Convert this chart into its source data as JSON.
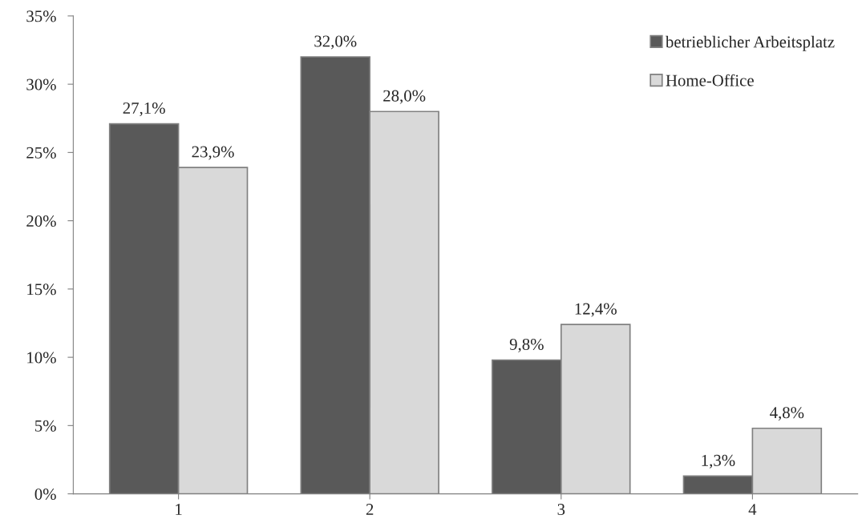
{
  "chart_data": {
    "type": "bar",
    "categories": [
      "1",
      "2",
      "3",
      "4"
    ],
    "series": [
      {
        "name": "betrieblicher Arbeitsplatz",
        "color": "#595959",
        "values": [
          27.1,
          32.0,
          9.8,
          1.3
        ],
        "value_labels": [
          "27,1%",
          "32,0%",
          "9,8%",
          "1,3%"
        ]
      },
      {
        "name": "Home-Office",
        "color": "#d9d9d9",
        "values": [
          23.9,
          28.0,
          12.4,
          4.8
        ],
        "value_labels": [
          "23,9%",
          "28,0%",
          "12,4%",
          "4,8%"
        ]
      }
    ],
    "ylim": [
      0,
      35
    ],
    "yticks": [
      {
        "value": 0,
        "label": "0%"
      },
      {
        "value": 5,
        "label": "5%"
      },
      {
        "value": 10,
        "label": "10%"
      },
      {
        "value": 15,
        "label": "15%"
      },
      {
        "value": 20,
        "label": "20%"
      },
      {
        "value": 25,
        "label": "25%"
      },
      {
        "value": 30,
        "label": "30%"
      },
      {
        "value": 35,
        "label": "35%"
      }
    ],
    "grid": false,
    "legend": "top right"
  }
}
